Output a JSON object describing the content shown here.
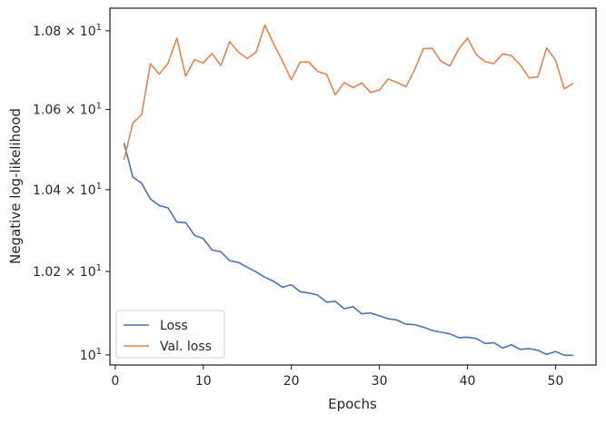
{
  "chart_data": {
    "type": "line",
    "title": "",
    "xlabel": "Epochs",
    "ylabel": "Negative log-likelihood",
    "y_scale": "log",
    "xlim": [
      -0.6,
      54.6
    ],
    "ylim": [
      9.976,
      10.858
    ],
    "x_ticks": [
      0,
      10,
      20,
      30,
      40,
      50
    ],
    "x_tick_labels": [
      "0",
      "10",
      "20",
      "30",
      "40",
      "50"
    ],
    "y_ticks": [
      10.0,
      10.2,
      10.4,
      10.6,
      10.8
    ],
    "y_tick_labels": [
      {
        "base": "10",
        "exp": "1",
        "prefix": ""
      },
      {
        "base": "10",
        "exp": "1",
        "prefix": "1.02 × "
      },
      {
        "base": "10",
        "exp": "1",
        "prefix": "1.04 × "
      },
      {
        "base": "10",
        "exp": "1",
        "prefix": "1.06 × "
      },
      {
        "base": "10",
        "exp": "1",
        "prefix": "1.08 × "
      }
    ],
    "grid": false,
    "legend_position": "lower-left",
    "series": [
      {
        "name": "Loss",
        "color": "#4c72b0",
        "x": [
          1,
          2,
          3,
          4,
          5,
          6,
          7,
          8,
          9,
          10,
          11,
          12,
          13,
          14,
          15,
          16,
          17,
          18,
          19,
          20,
          21,
          22,
          23,
          24,
          25,
          26,
          27,
          28,
          29,
          30,
          31,
          32,
          33,
          34,
          35,
          36,
          37,
          38,
          39,
          40,
          41,
          42,
          43,
          44,
          45,
          46,
          47,
          48,
          49,
          50,
          51,
          52
        ],
        "y": [
          10.516,
          10.431,
          10.416,
          10.377,
          10.361,
          10.355,
          10.32,
          10.319,
          10.288,
          10.28,
          10.252,
          10.248,
          10.226,
          10.222,
          10.21,
          10.199,
          10.186,
          10.176,
          10.162,
          10.168,
          10.151,
          10.148,
          10.143,
          10.126,
          10.128,
          10.11,
          10.115,
          10.098,
          10.1,
          10.093,
          10.086,
          10.083,
          10.073,
          10.072,
          10.066,
          10.058,
          10.054,
          10.05,
          10.041,
          10.042,
          10.039,
          10.027,
          10.029,
          10.016,
          10.024,
          10.013,
          10.015,
          10.011,
          10.001,
          10.008,
          9.999,
          9.999
        ]
      },
      {
        "name": "Val. loss",
        "color": "#dd8452",
        "x": [
          1,
          2,
          3,
          4,
          5,
          6,
          7,
          8,
          9,
          10,
          11,
          12,
          13,
          14,
          15,
          16,
          17,
          18,
          19,
          20,
          21,
          22,
          23,
          24,
          25,
          26,
          27,
          28,
          29,
          30,
          31,
          32,
          33,
          34,
          35,
          36,
          37,
          38,
          39,
          40,
          41,
          42,
          43,
          44,
          45,
          46,
          47,
          48,
          49,
          50,
          51,
          52
        ],
        "y": [
          10.474,
          10.566,
          10.587,
          10.716,
          10.689,
          10.717,
          10.781,
          10.684,
          10.726,
          10.718,
          10.742,
          10.711,
          10.772,
          10.745,
          10.729,
          10.745,
          10.815,
          10.766,
          10.722,
          10.675,
          10.72,
          10.72,
          10.696,
          10.689,
          10.637,
          10.668,
          10.655,
          10.667,
          10.643,
          10.649,
          10.677,
          10.668,
          10.657,
          10.7,
          10.754,
          10.755,
          10.722,
          10.71,
          10.753,
          10.781,
          10.739,
          10.721,
          10.716,
          10.741,
          10.736,
          10.713,
          10.68,
          10.682,
          10.756,
          10.725,
          10.652,
          10.666
        ]
      }
    ]
  }
}
